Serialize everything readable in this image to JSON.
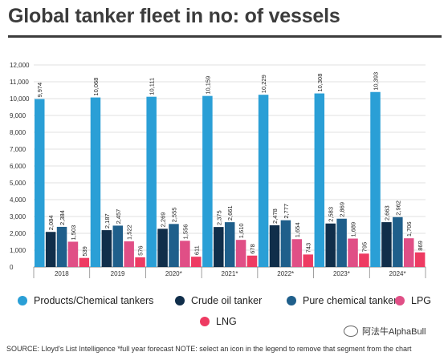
{
  "title": "Global tanker fleet in no: of vessels",
  "chart_data": {
    "type": "bar",
    "categories": [
      "2018",
      "2019",
      "2020*",
      "2021*",
      "2022*",
      "2023*",
      "2024*"
    ],
    "series": [
      {
        "name": "Products/Chemical tankers",
        "color": "#2a9fd6",
        "values": [
          9974,
          10068,
          10111,
          10159,
          10229,
          10308,
          10393
        ]
      },
      {
        "name": "Crude oil tanker",
        "color": "#102e4a",
        "values": [
          2084,
          2187,
          2269,
          2375,
          2478,
          2583,
          2663
        ]
      },
      {
        "name": "Pure chemical tanker",
        "color": "#1f5f8b",
        "values": [
          2384,
          2457,
          2555,
          2661,
          2777,
          2869,
          2962
        ]
      },
      {
        "name": "LPG",
        "color": "#e04f86",
        "values": [
          1503,
          1522,
          1556,
          1610,
          1654,
          1689,
          1706
        ]
      },
      {
        "name": "LNG",
        "color": "#ee3b62",
        "values": [
          539,
          576,
          611,
          678,
          743,
          795,
          869
        ]
      }
    ],
    "value_labels": [
      [
        "9,974",
        "2,084",
        "2,384",
        "1,503",
        "539"
      ],
      [
        "10,068",
        "2,187",
        "2,457",
        "1,522",
        "576"
      ],
      [
        "10,111",
        "2,269",
        "2,555",
        "1,556",
        "611"
      ],
      [
        "10,159",
        "2,375",
        "2,661",
        "1,610",
        "678"
      ],
      [
        "10,229",
        "2,478",
        "2,777",
        "1,654",
        "743"
      ],
      [
        "10,308",
        "2,583",
        "2,869",
        "1,689",
        "795"
      ],
      [
        "10,393",
        "2,663",
        "2,962",
        "1,706",
        "869"
      ]
    ],
    "y_ticks": [
      "0",
      "1,000",
      "2,000",
      "3,000",
      "4,000",
      "5,000",
      "6,000",
      "7,000",
      "8,000",
      "9,000",
      "10,000",
      "11,000",
      "12,000"
    ],
    "ylim": [
      0,
      12000
    ],
    "grid": true,
    "legend": "bottom"
  },
  "legend": {
    "items": [
      {
        "label": "Products/Chemical tankers",
        "color": "#2a9fd6"
      },
      {
        "label": "Crude oil tanker",
        "color": "#102e4a"
      },
      {
        "label": "Pure chemical tanker",
        "color": "#1f5f8b"
      },
      {
        "label": "LPG",
        "color": "#e04f86"
      },
      {
        "label": "LNG",
        "color": "#ee3b62"
      }
    ]
  },
  "source": "SOURCE: Lloyd's List Intelligence *full year forecast NOTE: select an icon in the legend to remove that segment from the chart",
  "watermark": "阿法牛AlphaBull"
}
